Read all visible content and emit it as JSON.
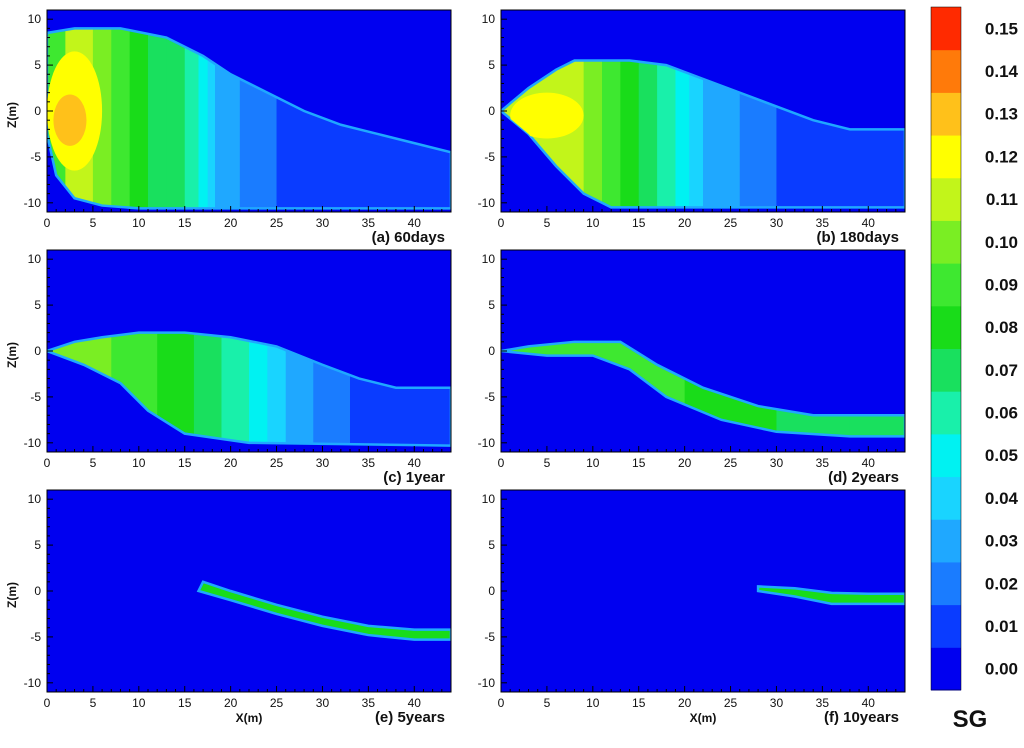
{
  "chart_data": {
    "type": "heatmap",
    "title": "",
    "xlabel": "X(m)",
    "ylabel": "Z(m)",
    "xlim": [
      0,
      44
    ],
    "ylim": [
      -11,
      11
    ],
    "x_ticks": [
      0,
      5,
      10,
      15,
      20,
      25,
      30,
      35,
      40
    ],
    "z_ticks": [
      10,
      5,
      0,
      -5,
      -10
    ],
    "colorbar": {
      "title": "SG",
      "levels": [
        "0.00",
        "0.01",
        "0.02",
        "0.03",
        "0.04",
        "0.05",
        "0.06",
        "0.07",
        "0.08",
        "0.09",
        "0.10",
        "0.11",
        "0.12",
        "0.13",
        "0.14",
        "0.15"
      ],
      "colors": [
        "#0000f0",
        "#0a3cff",
        "#1a7cff",
        "#1fa8ff",
        "#19d4ff",
        "#00f2f2",
        "#19f0aa",
        "#19e05e",
        "#19dc19",
        "#3ee830",
        "#7aee23",
        "#c2f51a",
        "#ffff00",
        "#ffc11a",
        "#ff7a0a",
        "#ff2a00"
      ],
      "background": "#0000f0"
    },
    "panels": [
      {
        "caption": "(a) 60days",
        "plume": {
          "top": [
            [
              0,
              8.5
            ],
            [
              3,
              9.0
            ],
            [
              8,
              9.0
            ],
            [
              13,
              8.0
            ],
            [
              17,
              6.0
            ],
            [
              20,
              4.0
            ],
            [
              24,
              2.0
            ],
            [
              28,
              0.0
            ],
            [
              32,
              -1.5
            ],
            [
              36,
              -2.5
            ],
            [
              40,
              -3.5
            ],
            [
              44,
              -4.5
            ]
          ],
          "bottom": [
            [
              0,
              -2.5
            ],
            [
              1,
              -7.0
            ],
            [
              3,
              -9.5
            ],
            [
              6,
              -10.3
            ],
            [
              10,
              -10.6
            ],
            [
              44,
              -10.6
            ]
          ]
        },
        "bands": [
          {
            "x": 0,
            "sg": 0.09
          },
          {
            "x": 2,
            "sg": 0.11
          },
          {
            "x": 5,
            "sg": 0.1
          },
          {
            "x": 7,
            "sg": 0.09
          },
          {
            "x": 9,
            "sg": 0.08
          },
          {
            "x": 11,
            "sg": 0.075
          },
          {
            "x": 13,
            "sg": 0.07
          },
          {
            "x": 15,
            "sg": 0.06
          },
          {
            "x": 16.5,
            "sg": 0.05
          },
          {
            "x": 17.5,
            "sg": 0.04
          },
          {
            "x": 18.3,
            "sg": 0.03
          },
          {
            "x": 21,
            "sg": 0.02
          },
          {
            "x": 25,
            "sg": 0.01
          }
        ],
        "cores": [
          {
            "cx": 3.0,
            "cz": 0.0,
            "rx": 3.0,
            "rz": 6.5,
            "sg": 0.12
          },
          {
            "cx": 2.5,
            "cz": -1.0,
            "rx": 1.8,
            "rz": 2.8,
            "sg": 0.13
          }
        ]
      },
      {
        "caption": "(b) 180days",
        "plume": {
          "top": [
            [
              0,
              0.0
            ],
            [
              3,
              2.5
            ],
            [
              6,
              4.5
            ],
            [
              8,
              5.5
            ],
            [
              14,
              5.5
            ],
            [
              18,
              5.0
            ],
            [
              22,
              3.5
            ],
            [
              26,
              2.0
            ],
            [
              30,
              0.5
            ],
            [
              34,
              -1.0
            ],
            [
              38,
              -2.0
            ],
            [
              44,
              -2.0
            ]
          ],
          "bottom": [
            [
              0,
              0.0
            ],
            [
              3,
              -2.5
            ],
            [
              6,
              -6.0
            ],
            [
              9,
              -9.0
            ],
            [
              12,
              -10.5
            ],
            [
              44,
              -10.5
            ]
          ]
        },
        "bands": [
          {
            "x": 0,
            "sg": 0.11
          },
          {
            "x": 5,
            "sg": 0.11
          },
          {
            "x": 9,
            "sg": 0.1
          },
          {
            "x": 11,
            "sg": 0.09
          },
          {
            "x": 13,
            "sg": 0.08
          },
          {
            "x": 15,
            "sg": 0.07
          },
          {
            "x": 17,
            "sg": 0.06
          },
          {
            "x": 19,
            "sg": 0.05
          },
          {
            "x": 20.5,
            "sg": 0.04
          },
          {
            "x": 22,
            "sg": 0.03
          },
          {
            "x": 26,
            "sg": 0.02
          },
          {
            "x": 30,
            "sg": 0.01
          }
        ],
        "cores": [
          {
            "cx": 5.0,
            "cz": -0.5,
            "rx": 4.0,
            "rz": 2.5,
            "sg": 0.12
          }
        ]
      },
      {
        "caption": "(c) 1year",
        "plume": {
          "top": [
            [
              0,
              0.0
            ],
            [
              3,
              1.0
            ],
            [
              6,
              1.5
            ],
            [
              10,
              2.0
            ],
            [
              15,
              2.0
            ],
            [
              20,
              1.5
            ],
            [
              25,
              0.5
            ],
            [
              30,
              -1.5
            ],
            [
              34,
              -3.0
            ],
            [
              38,
              -4.0
            ],
            [
              44,
              -4.0
            ]
          ],
          "bottom": [
            [
              0,
              0.0
            ],
            [
              4,
              -1.5
            ],
            [
              8,
              -3.5
            ],
            [
              11,
              -6.5
            ],
            [
              15,
              -9.0
            ],
            [
              22,
              -10.0
            ],
            [
              44,
              -10.3
            ]
          ]
        },
        "bands": [
          {
            "x": 0,
            "sg": 0.1
          },
          {
            "x": 7,
            "sg": 0.09
          },
          {
            "x": 12,
            "sg": 0.08
          },
          {
            "x": 16,
            "sg": 0.07
          },
          {
            "x": 19,
            "sg": 0.06
          },
          {
            "x": 22,
            "sg": 0.05
          },
          {
            "x": 24,
            "sg": 0.04
          },
          {
            "x": 26,
            "sg": 0.03
          },
          {
            "x": 29,
            "sg": 0.02
          },
          {
            "x": 33,
            "sg": 0.01
          }
        ],
        "cores": []
      },
      {
        "caption": "(d) 2years",
        "plume": {
          "top": [
            [
              0,
              0.0
            ],
            [
              3,
              0.5
            ],
            [
              8,
              1.0
            ],
            [
              13,
              1.0
            ],
            [
              17,
              -1.5
            ],
            [
              22,
              -4.0
            ],
            [
              28,
              -6.0
            ],
            [
              34,
              -7.0
            ],
            [
              44,
              -7.0
            ]
          ],
          "bottom": [
            [
              0,
              0.0
            ],
            [
              5,
              -0.5
            ],
            [
              10,
              -0.5
            ],
            [
              14,
              -2.0
            ],
            [
              18,
              -5.0
            ],
            [
              24,
              -7.5
            ],
            [
              30,
              -8.8
            ],
            [
              38,
              -9.3
            ],
            [
              44,
              -9.3
            ]
          ]
        },
        "bands": [
          {
            "x": 0,
            "sg": 0.09
          },
          {
            "x": 10,
            "sg": 0.09
          },
          {
            "x": 20,
            "sg": 0.08
          },
          {
            "x": 30,
            "sg": 0.075
          },
          {
            "x": 38,
            "sg": 0.07
          }
        ],
        "cores": []
      },
      {
        "caption": "(e) 5years",
        "plume": {
          "top": [
            [
              17,
              1.0
            ],
            [
              20,
              0.0
            ],
            [
              25,
              -1.5
            ],
            [
              30,
              -2.8
            ],
            [
              35,
              -3.8
            ],
            [
              40,
              -4.2
            ],
            [
              44,
              -4.2
            ]
          ],
          "bottom": [
            [
              16.5,
              0.0
            ],
            [
              20,
              -1.0
            ],
            [
              25,
              -2.5
            ],
            [
              30,
              -3.8
            ],
            [
              35,
              -4.8
            ],
            [
              40,
              -5.3
            ],
            [
              44,
              -5.3
            ]
          ]
        },
        "bands": [
          {
            "x": 16,
            "sg": 0.08
          },
          {
            "x": 30,
            "sg": 0.08
          }
        ],
        "cores": []
      },
      {
        "caption": "(f) 10years",
        "plume": {
          "top": [
            [
              28,
              0.5
            ],
            [
              32,
              0.3
            ],
            [
              36,
              -0.2
            ],
            [
              40,
              -0.3
            ],
            [
              44,
              -0.3
            ]
          ],
          "bottom": [
            [
              28,
              0.0
            ],
            [
              32,
              -0.6
            ],
            [
              36,
              -1.4
            ],
            [
              40,
              -1.4
            ],
            [
              44,
              -1.4
            ]
          ]
        },
        "bands": [
          {
            "x": 28,
            "sg": 0.08
          },
          {
            "x": 36,
            "sg": 0.08
          }
        ],
        "cores": []
      }
    ]
  }
}
